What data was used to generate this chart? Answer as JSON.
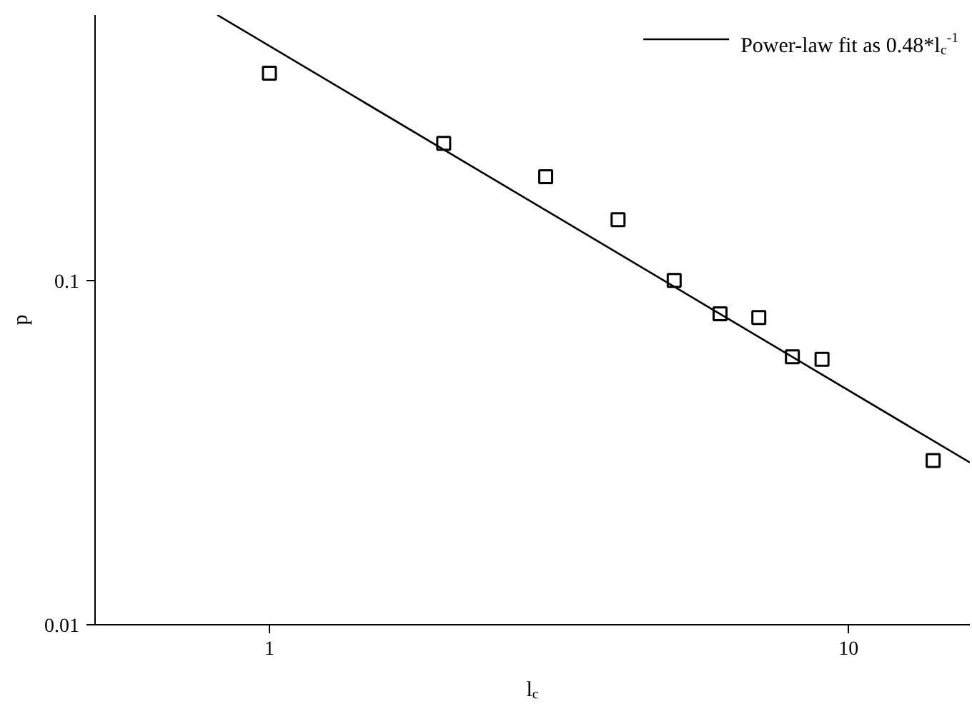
{
  "chart_data": {
    "type": "scatter",
    "xlabel": "l$_{c}$",
    "ylabel": "p",
    "log": "xy",
    "xlim": [
      0.5,
      16.2
    ],
    "ylim": [
      0.01,
      0.59
    ],
    "xticks": [
      1,
      10
    ],
    "yticks": [
      0.01,
      0.1
    ],
    "grid": false,
    "legend": "top right",
    "series": [
      {
        "marker": "square",
        "color": "#000000",
        "x": [
          1,
          2,
          3,
          4,
          5,
          6,
          7,
          8,
          9,
          14
        ],
        "values": [
          0.4,
          0.25,
          0.2,
          0.15,
          0.1,
          0.08,
          0.078,
          0.06,
          0.059,
          0.03
        ]
      },
      {
        "type": "line",
        "name": "Power-law fit as 0.48*l$_{c}$$^{-1}$",
        "color": "#000000",
        "line_style": "solid",
        "x": [
          0.813,
          16.2
        ],
        "values": [
          0.59,
          0.0296
        ]
      }
    ]
  }
}
